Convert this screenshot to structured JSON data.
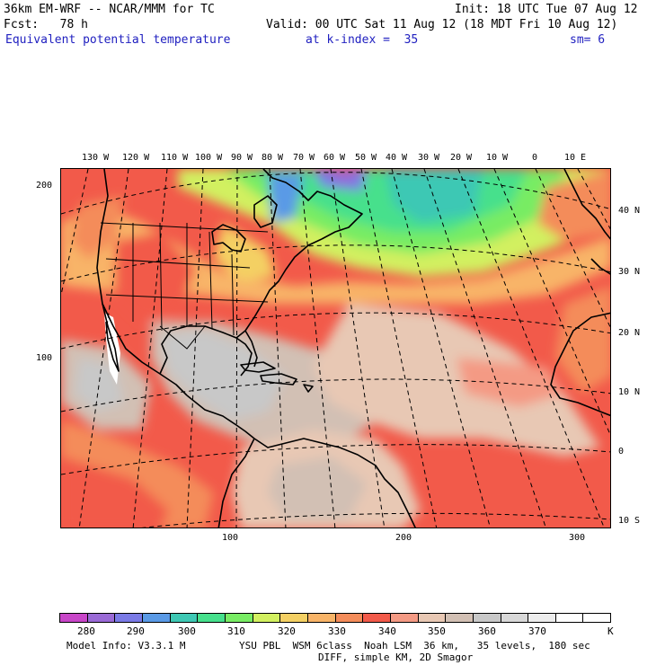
{
  "header": {
    "model": "36km EM-WRF -- NCAR/MMM for TC",
    "init": "Init: 18 UTC Tue 07 Aug 12",
    "fcst": "Fcst:   78 h",
    "valid": "Valid: 00 UTC Sat 11 Aug 12 (18 MDT Fri 10 Aug 12)",
    "field": "Equivalent potential temperature",
    "level": "at k-index =  35",
    "sm": "sm= 6"
  },
  "longitude_labels": [
    "130 W",
    "120 W",
    "110 W",
    "100 W",
    "90 W",
    "80 W",
    "70 W",
    "60 W",
    "50 W",
    "40 W",
    "30 W",
    "20 W",
    "10 W",
    "0",
    "10 E"
  ],
  "latitude_labels": [
    "40 N",
    "30 N",
    "20 N",
    "10 N",
    "0",
    "10 S"
  ],
  "grid_y_labels": [
    "200",
    "100"
  ],
  "grid_x_labels": [
    "100",
    "200",
    "300"
  ],
  "colorbar": {
    "labels": [
      "280",
      "290",
      "300",
      "310",
      "320",
      "330",
      "340",
      "350",
      "360",
      "370"
    ],
    "unit": "K",
    "colors": [
      "#c846c8",
      "#9a6ad6",
      "#7a7ae6",
      "#5a9ae6",
      "#3ec8b4",
      "#46e08c",
      "#78ec64",
      "#d2f060",
      "#f4d064",
      "#f8b468",
      "#f48c5a",
      "#f25a4a",
      "#f49a84",
      "#e8c8b4",
      "#d2c0b4",
      "#c8c8c8",
      "#d8d8d8",
      "#ececec",
      "#ffffff",
      "#ffffff"
    ]
  },
  "footer": {
    "line1a": "Model Info: V3.3.1 M",
    "line1b": "YSU PBL  WSM 6class  Noah LSM  36 km,   35 levels,  180 sec",
    "line2": "DIFF, simple KM, 2D Smagor"
  }
}
